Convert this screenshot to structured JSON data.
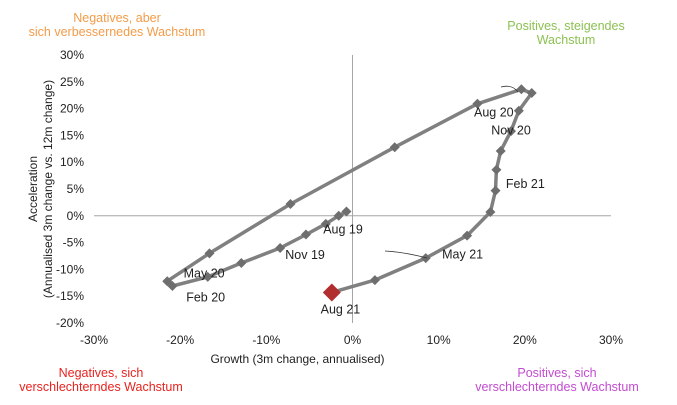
{
  "quadrants": {
    "top_left": {
      "line1": "Negatives, aber",
      "line2": "sich verbessernedes Wachstum",
      "color": "#f39c4a"
    },
    "top_right": {
      "line1": "Positives, steigendes",
      "line2": "Wachstum",
      "color": "#8cc152"
    },
    "bottom_left": {
      "line1": "Negatives, sich",
      "line2": "verschlechterndes Wachstum",
      "color": "#e8231f"
    },
    "bottom_right": {
      "line1": "Positives, sich",
      "line2": "verschlechterndes Wachstum",
      "color": "#c34bd1"
    }
  },
  "chart_data": {
    "type": "line",
    "xlabel": "Growth (3m change, annualised)",
    "ylabel": "Acceleration (Annualised 3m change vs. 12m change)",
    "xlim": [
      -0.3,
      0.3
    ],
    "ylim": [
      -0.2,
      0.3
    ],
    "x_ticks": [
      {
        "v": -0.3,
        "label": "-30%"
      },
      {
        "v": -0.2,
        "label": "-20%"
      },
      {
        "v": -0.1,
        "label": "-10%"
      },
      {
        "v": 0.0,
        "label": "0%"
      },
      {
        "v": 0.1,
        "label": "10%"
      },
      {
        "v": 0.2,
        "label": "20%"
      },
      {
        "v": 0.3,
        "label": "30%"
      }
    ],
    "y_ticks": [
      {
        "v": 0.3,
        "label": "30%"
      },
      {
        "v": 0.25,
        "label": "25%"
      },
      {
        "v": 0.2,
        "label": "20%"
      },
      {
        "v": 0.15,
        "label": "15%"
      },
      {
        "v": 0.1,
        "label": "10%"
      },
      {
        "v": 0.05,
        "label": "5%"
      },
      {
        "v": 0.0,
        "label": "0%"
      },
      {
        "v": -0.05,
        "label": "-5%"
      },
      {
        "v": -0.1,
        "label": "-10%"
      },
      {
        "v": -0.15,
        "label": "-15%"
      },
      {
        "v": -0.2,
        "label": "-20%"
      }
    ],
    "line_color": "#808080",
    "marker_color": "#6e6e6e",
    "last_marker_color": "#b22d2d",
    "points": [
      {
        "x": -0.007,
        "y": 0.008
      },
      {
        "x": -0.016,
        "y": 0.0
      },
      {
        "x": -0.031,
        "y": -0.015
      },
      {
        "x": -0.054,
        "y": -0.035
      },
      {
        "x": -0.084,
        "y": -0.06
      },
      {
        "x": -0.129,
        "y": -0.088
      },
      {
        "x": -0.168,
        "y": -0.114
      },
      {
        "x": -0.209,
        "y": -0.131
      },
      {
        "x": -0.215,
        "y": -0.122
      },
      {
        "x": -0.166,
        "y": -0.07
      },
      {
        "x": -0.072,
        "y": 0.022
      },
      {
        "x": 0.049,
        "y": 0.128
      },
      {
        "x": 0.145,
        "y": 0.209
      },
      {
        "x": 0.196,
        "y": 0.236
      },
      {
        "x": 0.208,
        "y": 0.229
      },
      {
        "x": 0.193,
        "y": 0.196
      },
      {
        "x": 0.184,
        "y": 0.158
      },
      {
        "x": 0.172,
        "y": 0.121
      },
      {
        "x": 0.167,
        "y": 0.086
      },
      {
        "x": 0.166,
        "y": 0.047
      },
      {
        "x": 0.16,
        "y": 0.007
      },
      {
        "x": 0.133,
        "y": -0.037
      },
      {
        "x": 0.085,
        "y": -0.079
      },
      {
        "x": 0.026,
        "y": -0.12
      },
      {
        "x": -0.024,
        "y": -0.143
      }
    ],
    "annotations": [
      {
        "text": "Aug 19",
        "x": -0.034,
        "y": -0.033
      },
      {
        "text": "Nov 19",
        "x": -0.078,
        "y": -0.081
      },
      {
        "text": "May 20",
        "x": -0.196,
        "y": -0.115
      },
      {
        "text": "Feb 20",
        "x": -0.193,
        "y": -0.16
      },
      {
        "text": "Aug 20",
        "x": 0.141,
        "y": 0.185
      },
      {
        "text": "Nov 20",
        "x": 0.161,
        "y": 0.152
      },
      {
        "text": "Feb 21",
        "x": 0.178,
        "y": 0.052
      },
      {
        "text": "May 21",
        "x": 0.104,
        "y": -0.08
      },
      {
        "text": "Aug 21",
        "x": -0.037,
        "y": -0.182
      }
    ]
  }
}
